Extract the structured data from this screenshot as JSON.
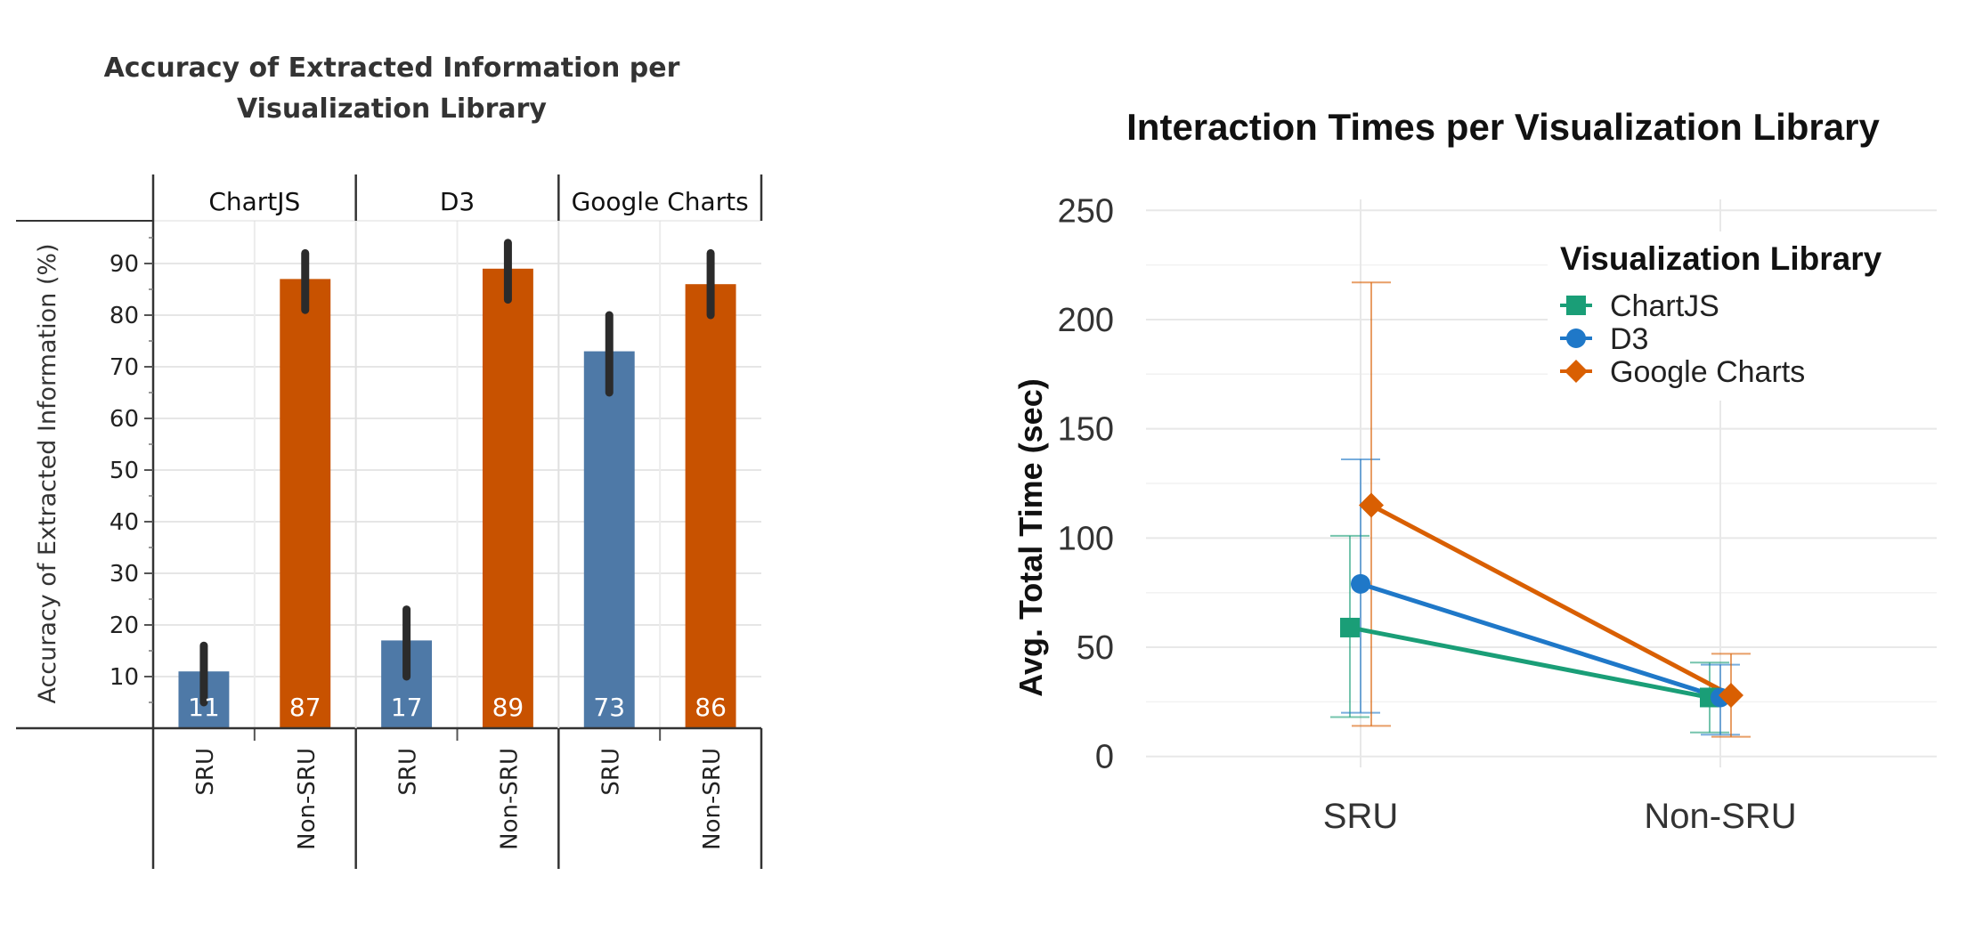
{
  "chart_data": [
    {
      "type": "bar",
      "title_lines": [
        "Accuracy of Extracted Information per",
        "Visualization Library"
      ],
      "ylabel": "Accuracy of Extracted Information (%)",
      "ylim": [
        0,
        100
      ],
      "yticks": [
        "10",
        "20",
        "30",
        "40",
        "50",
        "60",
        "70",
        "80",
        "90"
      ],
      "grid": true,
      "groups": [
        {
          "name": "ChartJS",
          "bars": [
            {
              "category": "SRU",
              "value": 11,
              "label": "11",
              "err_low": 5,
              "err_high": 16,
              "color": "#4e79a7"
            },
            {
              "category": "Non-SRU",
              "value": 87,
              "label": "87",
              "err_low": 81,
              "err_high": 92,
              "color": "#c85200"
            }
          ]
        },
        {
          "name": "D3",
          "bars": [
            {
              "category": "SRU",
              "value": 17,
              "label": "17",
              "err_low": 10,
              "err_high": 23,
              "color": "#4e79a7"
            },
            {
              "category": "Non-SRU",
              "value": 89,
              "label": "89",
              "err_low": 83,
              "err_high": 94,
              "color": "#c85200"
            }
          ]
        },
        {
          "name": "Google Charts",
          "bars": [
            {
              "category": "SRU",
              "value": 73,
              "label": "73",
              "err_low": 65,
              "err_high": 80,
              "color": "#4e79a7"
            },
            {
              "category": "Non-SRU",
              "value": 86,
              "label": "86",
              "err_low": 80,
              "err_high": 92,
              "color": "#c85200"
            }
          ]
        }
      ]
    },
    {
      "type": "line",
      "title": "Interaction Times per Visualization Library",
      "ylabel": "Avg. Total Time (sec)",
      "xlabel": "",
      "categories": [
        "SRU",
        "Non-SRU"
      ],
      "ylim": [
        -5,
        255
      ],
      "yticks": [
        "0",
        "50",
        "100",
        "150",
        "200",
        "250"
      ],
      "grid": true,
      "legend": {
        "title": "Visualization Library",
        "position": "top-right"
      },
      "series": [
        {
          "name": "ChartJS",
          "color": "#1a9e77",
          "marker": "square",
          "values": [
            59,
            27
          ],
          "err_low": [
            18,
            11
          ],
          "err_high": [
            101,
            43
          ]
        },
        {
          "name": "D3",
          "color": "#1f78c8",
          "marker": "circle",
          "values": [
            79,
            27
          ],
          "err_low": [
            20,
            10
          ],
          "err_high": [
            136,
            42
          ]
        },
        {
          "name": "Google Charts",
          "color": "#d95f02",
          "marker": "diamond",
          "values": [
            115,
            28
          ],
          "err_low": [
            14,
            9
          ],
          "err_high": [
            217,
            47
          ]
        }
      ]
    }
  ]
}
